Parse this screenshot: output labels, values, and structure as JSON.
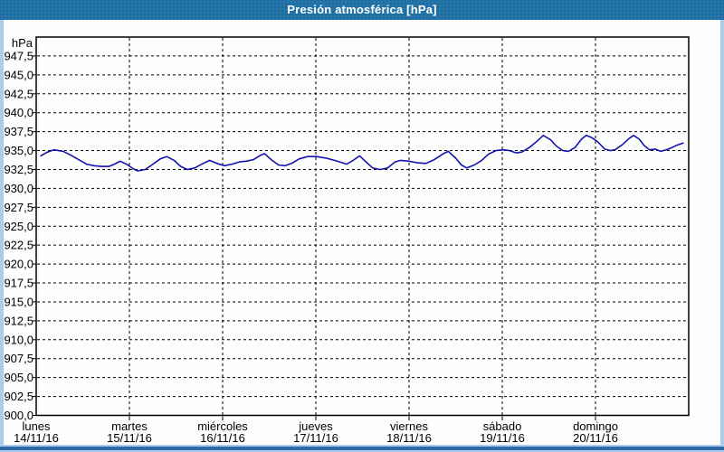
{
  "window": {
    "title": "Presión atmosférica [hPa]"
  },
  "colors": {
    "titlebar_bg": "#1d6fa4",
    "titlebar_text": "#ffffff",
    "frame": "#aecbea",
    "frame_accent": "#2a6ca6",
    "plot_border": "#000000",
    "grid": "#000000",
    "line": "#1313b0",
    "background": "#fdfdfb"
  },
  "chart_data": {
    "type": "line",
    "title": "Presión atmosférica [hPa]",
    "grid": "dashed",
    "legend": "none",
    "y_axis": {
      "unit_label": "hPa",
      "min": 900,
      "max": 950,
      "tick_step": 2.5,
      "tick_labels": [
        "947,5",
        "945,0",
        "942,5",
        "940,0",
        "937,5",
        "935,0",
        "932,5",
        "930,0",
        "927,5",
        "925,0",
        "922,5",
        "920,0",
        "917,5",
        "915,0",
        "912,5",
        "910,0",
        "907,5",
        "905,0",
        "902,5",
        "900,0"
      ],
      "tick_values": [
        947.5,
        945.0,
        942.5,
        940.0,
        937.5,
        935.0,
        932.5,
        930.0,
        927.5,
        925.0,
        922.5,
        920.0,
        917.5,
        915.0,
        912.5,
        910.0,
        907.5,
        905.0,
        902.5,
        900.0
      ]
    },
    "x_axis": {
      "span_days": 7,
      "days": [
        {
          "name": "lunes",
          "date": "14/11/16"
        },
        {
          "name": "martes",
          "date": "15/11/16"
        },
        {
          "name": "miércoles",
          "date": "16/11/16"
        },
        {
          "name": "jueves",
          "date": "17/11/16"
        },
        {
          "name": "viernes",
          "date": "18/11/16"
        },
        {
          "name": "sábado",
          "date": "19/11/16"
        },
        {
          "name": "domingo",
          "date": "20/11/16"
        }
      ]
    },
    "series": [
      {
        "name": "Presión atmosférica",
        "color": "#1313b0",
        "points_t_days_hpa": [
          [
            0.05,
            934.3
          ],
          [
            0.12,
            934.8
          ],
          [
            0.19,
            935.1
          ],
          [
            0.29,
            934.9
          ],
          [
            0.37,
            934.4
          ],
          [
            0.47,
            933.7
          ],
          [
            0.54,
            933.2
          ],
          [
            0.62,
            933.0
          ],
          [
            0.7,
            932.9
          ],
          [
            0.78,
            932.9
          ],
          [
            0.84,
            933.2
          ],
          [
            0.9,
            933.6
          ],
          [
            0.97,
            933.2
          ],
          [
            1.04,
            932.6
          ],
          [
            1.09,
            932.3
          ],
          [
            1.17,
            932.5
          ],
          [
            1.24,
            933.1
          ],
          [
            1.33,
            933.9
          ],
          [
            1.4,
            934.2
          ],
          [
            1.48,
            933.7
          ],
          [
            1.55,
            932.9
          ],
          [
            1.62,
            932.5
          ],
          [
            1.7,
            932.7
          ],
          [
            1.79,
            933.3
          ],
          [
            1.86,
            933.7
          ],
          [
            1.94,
            933.3
          ],
          [
            2.02,
            933.0
          ],
          [
            2.1,
            933.2
          ],
          [
            2.18,
            933.5
          ],
          [
            2.25,
            933.6
          ],
          [
            2.33,
            933.8
          ],
          [
            2.41,
            934.4
          ],
          [
            2.45,
            934.6
          ],
          [
            2.52,
            933.8
          ],
          [
            2.6,
            933.1
          ],
          [
            2.67,
            933.0
          ],
          [
            2.74,
            933.3
          ],
          [
            2.82,
            933.9
          ],
          [
            2.91,
            934.2
          ],
          [
            3.01,
            934.2
          ],
          [
            3.11,
            934.0
          ],
          [
            3.2,
            933.7
          ],
          [
            3.28,
            933.4
          ],
          [
            3.33,
            933.2
          ],
          [
            3.4,
            933.7
          ],
          [
            3.47,
            934.3
          ],
          [
            3.53,
            933.6
          ],
          [
            3.61,
            932.7
          ],
          [
            3.69,
            932.5
          ],
          [
            3.77,
            932.7
          ],
          [
            3.85,
            933.5
          ],
          [
            3.91,
            933.7
          ],
          [
            4.0,
            933.6
          ],
          [
            4.08,
            933.4
          ],
          [
            4.18,
            933.3
          ],
          [
            4.27,
            933.8
          ],
          [
            4.37,
            934.6
          ],
          [
            4.42,
            934.9
          ],
          [
            4.5,
            934.0
          ],
          [
            4.56,
            933.1
          ],
          [
            4.62,
            932.7
          ],
          [
            4.7,
            933.1
          ],
          [
            4.78,
            933.7
          ],
          [
            4.85,
            934.5
          ],
          [
            4.93,
            935.0
          ],
          [
            5.01,
            935.1
          ],
          [
            5.08,
            935.0
          ],
          [
            5.15,
            934.7
          ],
          [
            5.21,
            934.8
          ],
          [
            5.29,
            935.4
          ],
          [
            5.36,
            936.1
          ],
          [
            5.44,
            937.0
          ],
          [
            5.52,
            936.4
          ],
          [
            5.58,
            935.6
          ],
          [
            5.65,
            935.0
          ],
          [
            5.71,
            934.9
          ],
          [
            5.78,
            935.4
          ],
          [
            5.85,
            936.5
          ],
          [
            5.9,
            937.0
          ],
          [
            5.96,
            936.7
          ],
          [
            6.02,
            936.2
          ],
          [
            6.1,
            935.2
          ],
          [
            6.16,
            935.0
          ],
          [
            6.21,
            935.1
          ],
          [
            6.29,
            935.8
          ],
          [
            6.36,
            936.6
          ],
          [
            6.41,
            937.0
          ],
          [
            6.47,
            936.5
          ],
          [
            6.52,
            935.7
          ],
          [
            6.58,
            935.1
          ],
          [
            6.64,
            935.2
          ],
          [
            6.7,
            934.9
          ],
          [
            6.76,
            935.1
          ],
          [
            6.82,
            935.4
          ],
          [
            6.87,
            935.7
          ],
          [
            6.94,
            936.0
          ]
        ]
      }
    ]
  }
}
